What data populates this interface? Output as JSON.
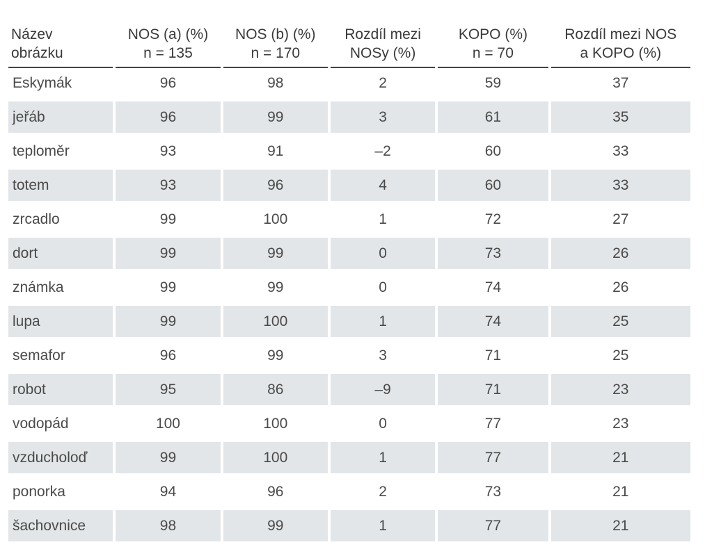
{
  "table": {
    "headers": [
      "Název\nobrázku",
      "NOS (a) (%)\nn = 135",
      "NOS (b) (%)\nn = 170",
      "Rozdíl mezi\nNOSy (%)",
      "KOPO (%)\nn = 70",
      "Rozdíl mezi NOS\na KOPO (%)"
    ],
    "rows": [
      [
        "Eskymák",
        "96",
        "98",
        "2",
        "59",
        "37"
      ],
      [
        "jeřáb",
        "96",
        "99",
        "3",
        "61",
        "35"
      ],
      [
        "teploměr",
        "93",
        "91",
        "–2",
        "60",
        "33"
      ],
      [
        "totem",
        "93",
        "96",
        "4",
        "60",
        "33"
      ],
      [
        "zrcadlo",
        "99",
        "100",
        "1",
        "72",
        "27"
      ],
      [
        "dort",
        "99",
        "99",
        "0",
        "73",
        "26"
      ],
      [
        "známka",
        "99",
        "99",
        "0",
        "74",
        "26"
      ],
      [
        "lupa",
        "99",
        "100",
        "1",
        "74",
        "25"
      ],
      [
        "semafor",
        "96",
        "99",
        "3",
        "71",
        "25"
      ],
      [
        "robot",
        "95",
        "86",
        "–9",
        "71",
        "23"
      ],
      [
        "vodopád",
        "100",
        "100",
        "0",
        "77",
        "23"
      ],
      [
        "vzducholoď",
        "99",
        "100",
        "1",
        "77",
        "21"
      ],
      [
        "ponorka",
        "94",
        "96",
        "2",
        "73",
        "21"
      ],
      [
        "šachovnice",
        "98",
        "99",
        "1",
        "77",
        "21"
      ]
    ]
  }
}
